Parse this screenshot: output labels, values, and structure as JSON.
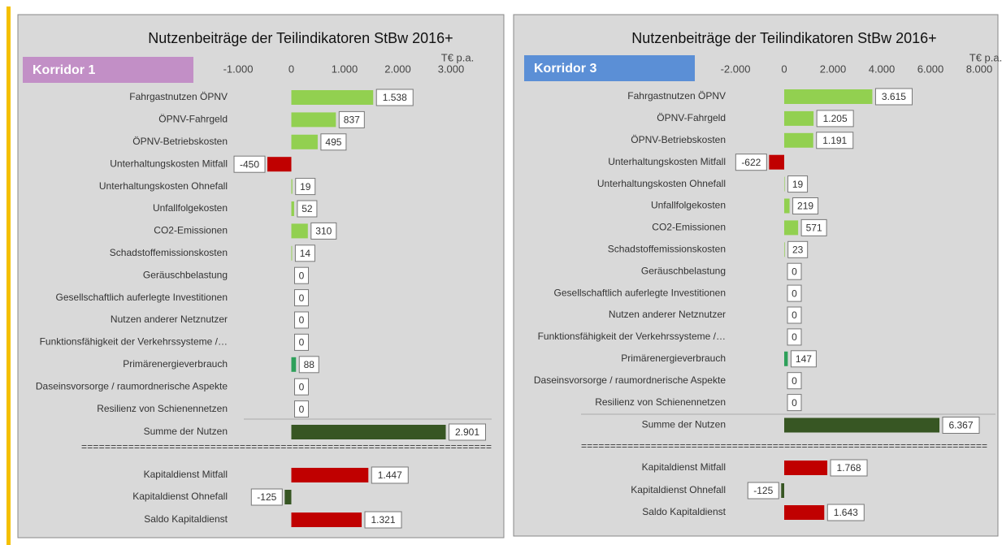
{
  "chart_data": [
    {
      "type": "bar",
      "title": "Nutzenbeiträge der Teilindikatoren StBw 2016+",
      "badge": "Korridor 1",
      "unit": "T€ p.a.",
      "xlim": [
        -1000,
        3000
      ],
      "xticks": [
        {
          "value": -1000,
          "label": "-1.000"
        },
        0,
        {
          "value": 1000,
          "label": "1.000"
        },
        {
          "value": 2000,
          "label": "2.000"
        },
        {
          "value": 3000,
          "label": "3.000"
        }
      ],
      "categories": [
        "Fahrgastnutzen ÖPNV",
        "ÖPNV-Fahrgeld",
        "ÖPNV-Betriebskosten",
        "Unterhaltungskosten Mitfall",
        "Unterhaltungskosten Ohnefall",
        "Unfallfolgekosten",
        "CO2-Emissionen",
        "Schadstoffemissionskosten",
        "Geräuschbelastung",
        "Gesellschaftlich auferlegte Investitionen",
        "Nutzen anderer Netznutzer",
        "Funktionsfähigkeit der Verkehrssysteme /…",
        "Primärenergieverbrauch",
        "Daseinsvorsorge / raumordnerische Aspekte",
        "Resilienz von Schienennetzen",
        "Summe der Nutzen",
        "Kapitaldienst Mitfall",
        "Kapitaldienst Ohnefall",
        "Saldo Kapitaldienst"
      ],
      "values": [
        1538,
        837,
        495,
        -450,
        19,
        52,
        310,
        14,
        0,
        0,
        0,
        0,
        88,
        0,
        0,
        2901,
        1447,
        -125,
        1321
      ],
      "value_labels": [
        "1.538",
        "837",
        "495",
        "-450",
        "19",
        "52",
        "310",
        "14",
        "0",
        "0",
        "0",
        "0",
        "88",
        "0",
        "0",
        "2.901",
        "1.447",
        "-125",
        "1.321"
      ],
      "colors": [
        "#92d050",
        "#92d050",
        "#92d050",
        "#c00000",
        "#92d050",
        "#92d050",
        "#92d050",
        "#92d050",
        "#92d050",
        "#92d050",
        "#92d050",
        "#92d050",
        "#2ea05a",
        "#92d050",
        "#92d050",
        "#375623",
        "#c00000",
        "#375623",
        "#c00000"
      ],
      "separator": "======================================================================"
    },
    {
      "type": "bar",
      "title": "Nutzenbeiträge der Teilindikatoren StBw 2016+",
      "badge": "Korridor 3",
      "unit": "T€ p.a.",
      "xlim": [
        -2000,
        8000
      ],
      "xticks": [
        {
          "value": -2000,
          "label": "-2.000"
        },
        0,
        {
          "value": 2000,
          "label": "2.000"
        },
        {
          "value": 4000,
          "label": "4.000"
        },
        {
          "value": 6000,
          "label": "6.000"
        },
        {
          "value": 8000,
          "label": "8.000"
        }
      ],
      "categories": [
        "Fahrgastnutzen ÖPNV",
        "ÖPNV-Fahrgeld",
        "ÖPNV-Betriebskosten",
        "Unterhaltungskosten Mitfall",
        "Unterhaltungskosten Ohnefall",
        "Unfallfolgekosten",
        "CO2-Emissionen",
        "Schadstoffemissionskosten",
        "Geräuschbelastung",
        "Gesellschaftlich auferlegte Investitionen",
        "Nutzen anderer Netznutzer",
        "Funktionsfähigkeit der Verkehrssysteme /…",
        "Primärenergieverbrauch",
        "Daseinsvorsorge / raumordnerische Aspekte",
        "Resilienz von Schienennetzen",
        "Summe der Nutzen",
        "Kapitaldienst Mitfall",
        "Kapitaldienst Ohnefall",
        "Saldo Kapitaldienst"
      ],
      "values": [
        3615,
        1205,
        1191,
        -622,
        19,
        219,
        571,
        23,
        0,
        0,
        0,
        0,
        147,
        0,
        0,
        6367,
        1768,
        -125,
        1643
      ],
      "value_labels": [
        "3.615",
        "1.205",
        "1.191",
        "-622",
        "19",
        "219",
        "571",
        "23",
        "0",
        "0",
        "0",
        "0",
        "147",
        "0",
        "0",
        "6.367",
        "1.768",
        "-125",
        "1.643"
      ],
      "colors": [
        "#92d050",
        "#92d050",
        "#92d050",
        "#c00000",
        "#92d050",
        "#92d050",
        "#92d050",
        "#92d050",
        "#92d050",
        "#92d050",
        "#92d050",
        "#92d050",
        "#2ea05a",
        "#92d050",
        "#92d050",
        "#375623",
        "#c00000",
        "#375623",
        "#c00000"
      ],
      "separator": "======================================================================"
    }
  ]
}
